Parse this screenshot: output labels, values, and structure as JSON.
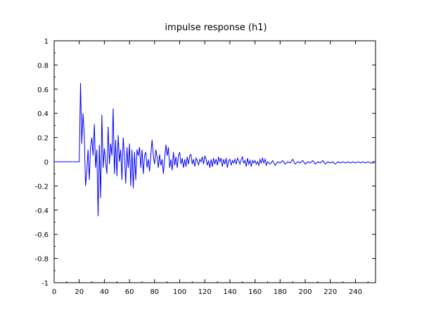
{
  "chart_data": {
    "type": "line",
    "title": "impulse response (h1)",
    "xlabel": "",
    "ylabel": "",
    "xlim": [
      0,
      256
    ],
    "ylim": [
      -1,
      1
    ],
    "x_ticks": [
      0,
      20,
      40,
      60,
      80,
      100,
      120,
      140,
      160,
      180,
      200,
      220,
      240
    ],
    "y_ticks": [
      -1,
      -0.8,
      -0.6,
      -0.4,
      -0.2,
      0,
      0.2,
      0.4,
      0.6,
      0.8,
      1
    ],
    "x_tick_labels": [
      "0",
      "20",
      "40",
      "60",
      "80",
      "100",
      "120",
      "140",
      "160",
      "180",
      "200",
      "220",
      "240"
    ],
    "y_tick_labels": [
      "-1",
      "-0.8",
      "-0.6",
      "-0.4",
      "-0.2",
      "0",
      "0.2",
      "0.4",
      "0.6",
      "0.8",
      "1"
    ],
    "grid": false,
    "series": [
      {
        "color": "#0000ff",
        "points": [
          [
            0,
            0
          ],
          [
            20,
            0
          ],
          [
            21,
            0.65
          ],
          [
            22,
            0.15
          ],
          [
            23,
            0.4
          ],
          [
            24,
            0.22
          ],
          [
            25,
            -0.2
          ],
          [
            26,
            -0.08
          ],
          [
            27,
            0.1
          ],
          [
            28,
            -0.15
          ],
          [
            29,
            0.12
          ],
          [
            30,
            0.2
          ],
          [
            31,
            0.05
          ],
          [
            32,
            0.31
          ],
          [
            33,
            -0.05
          ],
          [
            34,
            0.1
          ],
          [
            35,
            -0.45
          ],
          [
            36,
            0.14
          ],
          [
            37,
            -0.3
          ],
          [
            38,
            0.39
          ],
          [
            39,
            -0.05
          ],
          [
            40,
            0.11
          ],
          [
            41,
            0.0
          ],
          [
            42,
            -0.1
          ],
          [
            43,
            0.29
          ],
          [
            44,
            -0.02
          ],
          [
            45,
            0.15
          ],
          [
            46,
            0.05
          ],
          [
            47,
            0.44
          ],
          [
            48,
            -0.1
          ],
          [
            49,
            0.18
          ],
          [
            50,
            -0.12
          ],
          [
            51,
            0.22
          ],
          [
            52,
            0.0
          ],
          [
            53,
            0.1
          ],
          [
            54,
            -0.15
          ],
          [
            55,
            0.2
          ],
          [
            56,
            0.05
          ],
          [
            57,
            -0.18
          ],
          [
            58,
            0.12
          ],
          [
            59,
            -0.05
          ],
          [
            60,
            0.15
          ],
          [
            61,
            -0.2
          ],
          [
            62,
            0.1
          ],
          [
            63,
            -0.22
          ],
          [
            64,
            0.08
          ],
          [
            65,
            -0.15
          ],
          [
            66,
            0.1
          ],
          [
            67,
            0.05
          ],
          [
            68,
            0.12
          ],
          [
            69,
            -0.05
          ],
          [
            70,
            0.1
          ],
          [
            71,
            -0.1
          ],
          [
            72,
            0.05
          ],
          [
            73,
            0.08
          ],
          [
            74,
            -0.05
          ],
          [
            75,
            0.02
          ],
          [
            76,
            -0.08
          ],
          [
            77,
            0.06
          ],
          [
            78,
            0.18
          ],
          [
            79,
            0.05
          ],
          [
            80,
            -0.02
          ],
          [
            81,
            0.1
          ],
          [
            82,
            0.04
          ],
          [
            83,
            -0.05
          ],
          [
            84,
            0.06
          ],
          [
            85,
            -0.03
          ],
          [
            86,
            0.02
          ],
          [
            87,
            -0.1
          ],
          [
            88,
            0.03
          ],
          [
            89,
            0.14
          ],
          [
            90,
            0.05
          ],
          [
            91,
            0.12
          ],
          [
            92,
            -0.05
          ],
          [
            93,
            0.02
          ],
          [
            94,
            -0.07
          ],
          [
            95,
            0.08
          ],
          [
            96,
            -0.03
          ],
          [
            97,
            0.04
          ],
          [
            98,
            -0.05
          ],
          [
            99,
            0.05
          ],
          [
            100,
            0.08
          ],
          [
            101,
            -0.02
          ],
          [
            102,
            0.03
          ],
          [
            103,
            -0.05
          ],
          [
            104,
            0.02
          ],
          [
            105,
            -0.04
          ],
          [
            106,
            0.04
          ],
          [
            107,
            -0.02
          ],
          [
            108,
            0.05
          ],
          [
            109,
            0.06
          ],
          [
            110,
            -0.02
          ],
          [
            111,
            0.02
          ],
          [
            112,
            -0.04
          ],
          [
            113,
            0.03
          ],
          [
            114,
            0.01
          ],
          [
            115,
            -0.03
          ],
          [
            116,
            0.02
          ],
          [
            117,
            0.0
          ],
          [
            118,
            0.04
          ],
          [
            119,
            -0.02
          ],
          [
            120,
            0.05
          ],
          [
            121,
            0.02
          ],
          [
            122,
            -0.03
          ],
          [
            123,
            0.01
          ],
          [
            124,
            -0.05
          ],
          [
            125,
            0.02
          ],
          [
            126,
            -0.04
          ],
          [
            127,
            0.03
          ],
          [
            128,
            -0.02
          ],
          [
            129,
            0.02
          ],
          [
            130,
            -0.03
          ],
          [
            131,
            0.04
          ],
          [
            132,
            0.0
          ],
          [
            133,
            0.03
          ],
          [
            134,
            -0.04
          ],
          [
            135,
            0.02
          ],
          [
            136,
            -0.02
          ],
          [
            137,
            0.03
          ],
          [
            138,
            -0.05
          ],
          [
            139,
            0.01
          ],
          [
            140,
            0.02
          ],
          [
            141,
            -0.03
          ],
          [
            142,
            0.01
          ],
          [
            143,
            -0.01
          ],
          [
            144,
            0.02
          ],
          [
            145,
            -0.02
          ],
          [
            146,
            0.03
          ],
          [
            147,
            0.01
          ],
          [
            148,
            -0.02
          ],
          [
            149,
            0.02
          ],
          [
            150,
            0.04
          ],
          [
            151,
            -0.01
          ],
          [
            152,
            0.01
          ],
          [
            153,
            -0.04
          ],
          [
            154,
            0.03
          ],
          [
            155,
            -0.02
          ],
          [
            156,
            0.01
          ],
          [
            157,
            -0.04
          ],
          [
            158,
            0.01
          ],
          [
            159,
            -0.01
          ],
          [
            160,
            0.01
          ],
          [
            161,
            -0.02
          ],
          [
            162,
            0.0
          ],
          [
            163,
            -0.03
          ],
          [
            164,
            0.02
          ],
          [
            165,
            -0.01
          ],
          [
            166,
            0.03
          ],
          [
            167,
            -0.01
          ],
          [
            168,
            0.02
          ],
          [
            169,
            -0.03
          ],
          [
            170,
            0.0
          ],
          [
            172,
            -0.02
          ],
          [
            174,
            0.01
          ],
          [
            176,
            -0.03
          ],
          [
            178,
            0.0
          ],
          [
            180,
            -0.01
          ],
          [
            182,
            0.01
          ],
          [
            184,
            -0.02
          ],
          [
            186,
            0.0
          ],
          [
            188,
            -0.01
          ],
          [
            190,
            0.02
          ],
          [
            192,
            -0.02
          ],
          [
            194,
            0.0
          ],
          [
            196,
            -0.01
          ],
          [
            198,
            0.01
          ],
          [
            200,
            -0.02
          ],
          [
            202,
            0.0
          ],
          [
            204,
            -0.01
          ],
          [
            206,
            0.01
          ],
          [
            208,
            -0.02
          ],
          [
            210,
            0.0
          ],
          [
            212,
            -0.01
          ],
          [
            214,
            0.01
          ],
          [
            216,
            -0.02
          ],
          [
            218,
            0.0
          ],
          [
            220,
            -0.01
          ],
          [
            222,
            0.0
          ],
          [
            224,
            -0.02
          ],
          [
            226,
            0.0
          ],
          [
            228,
            -0.01
          ],
          [
            230,
            0.0
          ],
          [
            232,
            -0.01
          ],
          [
            234,
            0.0
          ],
          [
            236,
            -0.01
          ],
          [
            238,
            0.0
          ],
          [
            240,
            -0.01
          ],
          [
            242,
            0.0
          ],
          [
            244,
            -0.01
          ],
          [
            246,
            0.0
          ],
          [
            248,
            -0.01
          ],
          [
            250,
            0.0
          ],
          [
            252,
            -0.01
          ],
          [
            255,
            -0.01
          ]
        ]
      }
    ]
  }
}
